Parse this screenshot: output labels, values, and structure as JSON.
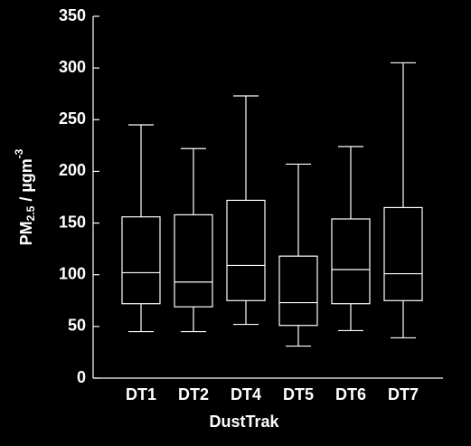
{
  "chart_data": {
    "type": "box",
    "x_label": "DustTrak",
    "y_label": {
      "main": "PM",
      "sub": "2.5",
      "unit": " / µgm",
      "sup": "-3"
    },
    "categories": [
      "DT1",
      "DT2",
      "DT4",
      "DT5",
      "DT6",
      "DT7"
    ],
    "min": [
      45,
      45,
      52,
      31,
      46,
      39
    ],
    "q1": [
      72,
      69,
      75,
      51,
      72,
      75
    ],
    "median": [
      102,
      93,
      109,
      73,
      105,
      101
    ],
    "q3": [
      156,
      158,
      172,
      118,
      154,
      165
    ],
    "max": [
      245,
      222,
      273,
      207,
      224,
      305
    ],
    "color": "#ffffff",
    "ylim": [
      0,
      350
    ],
    "yticks": [
      0,
      50,
      100,
      150,
      200,
      250,
      300,
      350
    ]
  }
}
